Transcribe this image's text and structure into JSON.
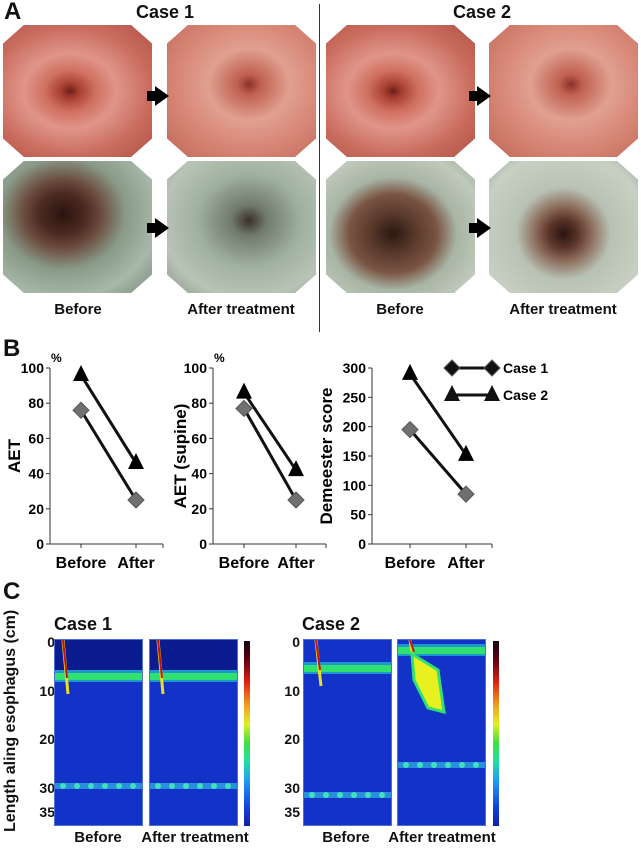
{
  "panel_labels": {
    "a": "A",
    "b": "B",
    "c": "C"
  },
  "panel_a": {
    "case1_title": "Case 1",
    "case2_title": "Case 2",
    "column_labels": [
      "Before",
      "After treatment",
      "Before",
      "After treatment"
    ]
  },
  "chart_data": [
    {
      "type": "line",
      "ylabel": "AET",
      "unit": "%",
      "categories": [
        "Before",
        "After"
      ],
      "ylim": [
        0,
        100
      ],
      "yticks": [
        0,
        20,
        40,
        60,
        80,
        100
      ],
      "series": [
        {
          "name": "Case 1",
          "marker": "diamond",
          "color": "#707070",
          "values": [
            76,
            25
          ]
        },
        {
          "name": "Case 2",
          "marker": "triangle",
          "color": "#000000",
          "values": [
            96,
            46
          ]
        }
      ]
    },
    {
      "type": "line",
      "ylabel": "AET (supine)",
      "unit": "%",
      "categories": [
        "Before",
        "After"
      ],
      "ylim": [
        0,
        100
      ],
      "yticks": [
        0,
        20,
        40,
        60,
        80,
        100
      ],
      "series": [
        {
          "name": "Case 1",
          "marker": "diamond",
          "color": "#707070",
          "values": [
            77,
            25
          ]
        },
        {
          "name": "Case 2",
          "marker": "triangle",
          "color": "#000000",
          "values": [
            86,
            42
          ]
        }
      ]
    },
    {
      "type": "line",
      "ylabel": "Demeester score",
      "categories": [
        "Before",
        "After"
      ],
      "ylim": [
        0,
        300
      ],
      "yticks": [
        0,
        50,
        100,
        150,
        200,
        250,
        300
      ],
      "legend": {
        "position": "top-right",
        "entries": [
          "Case 1",
          "Case 2"
        ]
      },
      "series": [
        {
          "name": "Case 1",
          "marker": "diamond",
          "color": "#707070",
          "values": [
            195,
            85
          ]
        },
        {
          "name": "Case 2",
          "marker": "triangle",
          "color": "#000000",
          "values": [
            290,
            152
          ]
        }
      ]
    }
  ],
  "panel_c": {
    "ylabel": "Length aling esophagus (cm)",
    "yticks": [
      0,
      10,
      20,
      30,
      35
    ],
    "case1_title": "Case 1",
    "case2_title": "Case 2",
    "column_labels": [
      "Before",
      "After treatment",
      "Before",
      "After treatment"
    ],
    "colors": {
      "background": "#1232c8",
      "band": "#30e070",
      "peak": "#c01010"
    }
  }
}
